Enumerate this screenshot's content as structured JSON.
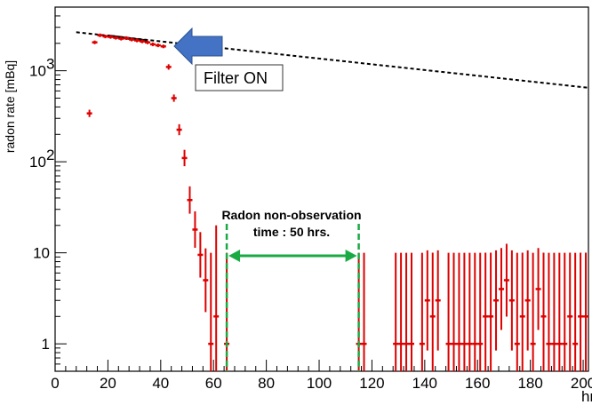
{
  "chart_data": {
    "type": "scatter",
    "ylabel": "radon rate [mBq]",
    "xlabel_unit": "hr",
    "xlim": [
      0,
      202
    ],
    "ylim": [
      0.5,
      5000
    ],
    "yscale": "log",
    "x_ticks": [
      0,
      20,
      40,
      60,
      80,
      100,
      120,
      140,
      160,
      180,
      200
    ],
    "x_tick_labels": [
      "0",
      "20",
      "40",
      "60",
      "80",
      "100",
      "120",
      "140",
      "160",
      "180",
      "200"
    ],
    "y_ticks": [
      {
        "value": 1,
        "base": "1",
        "exp": ""
      },
      {
        "value": 10,
        "base": "10",
        "exp": ""
      },
      {
        "value": 100,
        "base": "10",
        "exp": "2"
      },
      {
        "value": 1000,
        "base": "10",
        "exp": "3"
      }
    ],
    "colors": {
      "points": "#dd0000",
      "green": "#1aaa44",
      "arrow_blue": "#4472c4",
      "fit": "#000000",
      "initial": "#000000"
    },
    "fit_line": {
      "x": [
        8,
        202
      ],
      "y": [
        2650,
        650
      ],
      "style": "dashed"
    },
    "initial_segment": {
      "x": [
        20,
        35
      ],
      "y": [
        2420,
        2130
      ]
    },
    "annotations": {
      "filter_label": "Filter ON",
      "gap_line1": "Radon non-observation",
      "gap_line2": "time : 50 hrs.",
      "gap_start_x": 65,
      "gap_end_x": 115
    },
    "series": [
      {
        "x": [
          13,
          15,
          17,
          19,
          21,
          23,
          25,
          27,
          29,
          31,
          33,
          35,
          37,
          39,
          41,
          43,
          45,
          47,
          49,
          51,
          53,
          55,
          57,
          59,
          61,
          65,
          115,
          117,
          129,
          131,
          133,
          135,
          139,
          141,
          143,
          145,
          149,
          151,
          153,
          155,
          157,
          159,
          161,
          163,
          165,
          167,
          169,
          171,
          173,
          175,
          177,
          179,
          181,
          183,
          185,
          187,
          189,
          191,
          193,
          195,
          197,
          199,
          201
        ],
        "y": [
          340,
          2050,
          2450,
          2380,
          2350,
          2300,
          2250,
          2280,
          2200,
          2150,
          2100,
          2050,
          1950,
          1900,
          1850,
          1100,
          500,
          225,
          110,
          38,
          18,
          9.5,
          5,
          1,
          2,
          1,
          1,
          1,
          1,
          1,
          1,
          1,
          1,
          3,
          2,
          3,
          1,
          1,
          1,
          1,
          1,
          1,
          1,
          2,
          2,
          3,
          4,
          5,
          3,
          1,
          2,
          3,
          1,
          4,
          2,
          1,
          1,
          1,
          1,
          2,
          1,
          2,
          2
        ],
        "yerr": [
          0.04,
          0.02,
          0.02,
          0.02,
          0.02,
          0.02,
          0.02,
          0.02,
          0.02,
          0.02,
          0.02,
          0.02,
          0.02,
          0.02,
          0.02,
          0.03,
          0.04,
          0.06,
          0.09,
          0.15,
          0.2,
          0.25,
          0.35,
          1,
          1,
          1,
          1,
          1,
          1,
          1,
          1,
          1,
          1,
          0.55,
          0.7,
          0.55,
          1,
          1,
          1,
          1,
          1,
          1,
          1,
          0.7,
          0.7,
          0.55,
          0.45,
          0.4,
          0.55,
          1,
          0.7,
          0.55,
          1,
          0.45,
          0.7,
          1,
          1,
          1,
          1,
          0.7,
          1,
          0.7,
          0.7
        ]
      }
    ]
  }
}
